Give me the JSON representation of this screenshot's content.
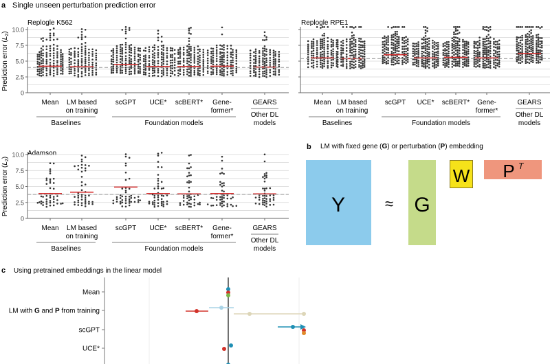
{
  "panel_a": {
    "letter": "a",
    "title": "Single unseen perturbation prediction error",
    "ylabel": "Prediction error (L2)",
    "ylabel_main": "Prediction error (",
    "ylabel_sym": "L",
    "ylabel_sub": "2",
    "ylabel_end": ")",
    "method_labels": [
      [
        "Mean"
      ],
      [
        "LM based",
        "on training"
      ],
      [
        "scGPT"
      ],
      [
        "UCE*"
      ],
      [
        "scBERT*"
      ],
      [
        "Gene-",
        "former*"
      ],
      [
        "GEARS"
      ]
    ],
    "groups": [
      {
        "label": [
          "Baselines"
        ],
        "members": [
          0,
          1
        ]
      },
      {
        "label": [
          "Foundation models"
        ],
        "members": [
          2,
          5
        ]
      },
      {
        "label": [
          "Other DL",
          "models"
        ],
        "members": [
          6,
          6
        ]
      }
    ]
  },
  "chart_data": [
    {
      "type": "scatter",
      "subtype": "beeswarm",
      "title": "Replogle K562",
      "ylabel": "Prediction error (L2)",
      "ylim": [
        0,
        10.5
      ],
      "yticks": [
        "0",
        "2.5",
        "5.0",
        "7.5",
        "10.0"
      ],
      "categories": [
        "Mean",
        "LM based on training",
        "scGPT",
        "UCE*",
        "scBERT*",
        "Gene-former*",
        "GEARS"
      ],
      "mean_values": [
        4.2,
        4.1,
        4.45,
        4.15,
        4.15,
        4.2,
        4.05
      ],
      "reference_line": 4.0,
      "grid": true
    },
    {
      "type": "scatter",
      "subtype": "beeswarm",
      "title": "Replogle RPE1",
      "ylim": [
        0,
        10.5
      ],
      "yticks": [],
      "categories": [
        "Mean",
        "LM based on training",
        "scGPT",
        "UCE*",
        "scBERT*",
        "Gene-former*",
        "GEARS"
      ],
      "mean_values": [
        5.5,
        5.4,
        6.0,
        5.5,
        5.6,
        5.5,
        6.2
      ],
      "reference_line": 5.4,
      "grid": true
    },
    {
      "type": "scatter",
      "subtype": "beeswarm",
      "title": "Adamson",
      "ylabel": "Prediction error (L2)",
      "ylim": [
        0,
        10.5
      ],
      "yticks": [
        "0",
        "2.5",
        "5.0",
        "7.5",
        "10.0"
      ],
      "categories": [
        "Mean",
        "LM based on training",
        "scGPT",
        "UCE*",
        "scBERT*",
        "Gene-former*",
        "GEARS"
      ],
      "mean_values": [
        3.9,
        4.1,
        4.9,
        3.9,
        3.85,
        3.9,
        3.85
      ],
      "reference_line": 3.75,
      "grid": true
    },
    {
      "type": "scatter",
      "subtype": "forest",
      "title": "Using pretrained embeddings in the linear model",
      "categories": [
        "Mean",
        "LM with G and P from training",
        "scGPT",
        "UCE*"
      ],
      "category_parts": [
        [
          "Mean"
        ],
        [
          "LM with ",
          "G",
          " and ",
          "P",
          " from training"
        ],
        [
          "scGPT"
        ],
        [
          "UCE*"
        ]
      ],
      "series_colors": [
        "#1f8fb4",
        "#d2322a",
        "#e08a2a",
        "#7ab648",
        "#a9d3e6",
        "#ddd6b8"
      ],
      "grid": true
    }
  ],
  "panel_b": {
    "letter": "b",
    "title_parts": [
      "LM with fixed gene (",
      "G",
      ") or perturbation (",
      "P",
      ") embedding"
    ],
    "Y": "Y",
    "approx": "≈",
    "G": "G",
    "W": "W",
    "P": "P",
    "P_sup": "T",
    "colors": {
      "Y": "#8ccbec",
      "G": "#c5db8a",
      "W": "#f6e21a",
      "P": "#ef967d"
    }
  },
  "panel_c": {
    "letter": "c"
  }
}
